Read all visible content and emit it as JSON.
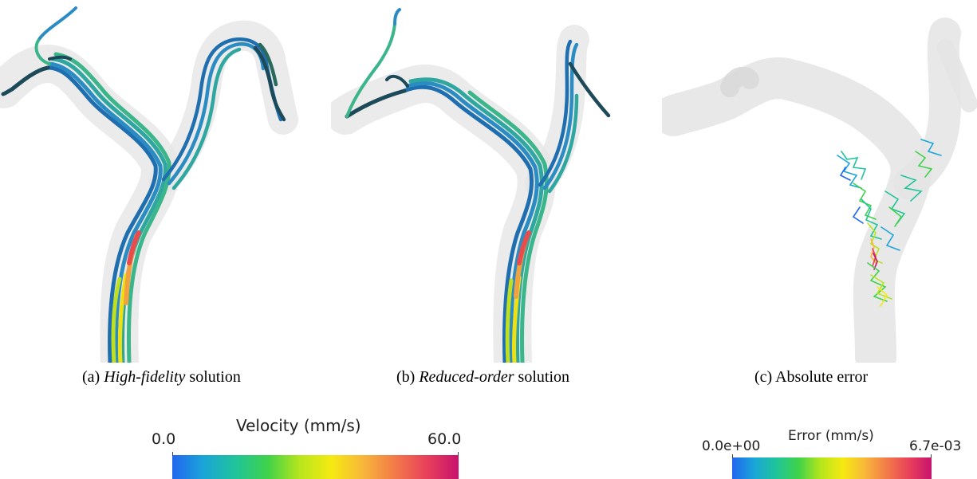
{
  "panels": [
    {
      "letter": "(a)",
      "emph": "High-fidelity",
      "rest": " solution"
    },
    {
      "letter": "(b)",
      "emph": "Reduced-order",
      "rest": " solution"
    },
    {
      "letter": "(c)",
      "emph": "",
      "rest": "Absolute error"
    }
  ],
  "velocity_bar": {
    "title": "Velocity  (mm/s)",
    "min_label": "0.0",
    "max_label": "60.0"
  },
  "error_bar": {
    "title": "Error (mm/s)",
    "min_label": "0.0e+00",
    "max_label": "6.7e-03"
  },
  "colormap": [
    "#2166f0",
    "#1aa6d8",
    "#20c49a",
    "#3fd24a",
    "#b6e61c",
    "#f5ea12",
    "#f8b63a",
    "#f27a48",
    "#e8405a",
    "#c8126e"
  ]
}
